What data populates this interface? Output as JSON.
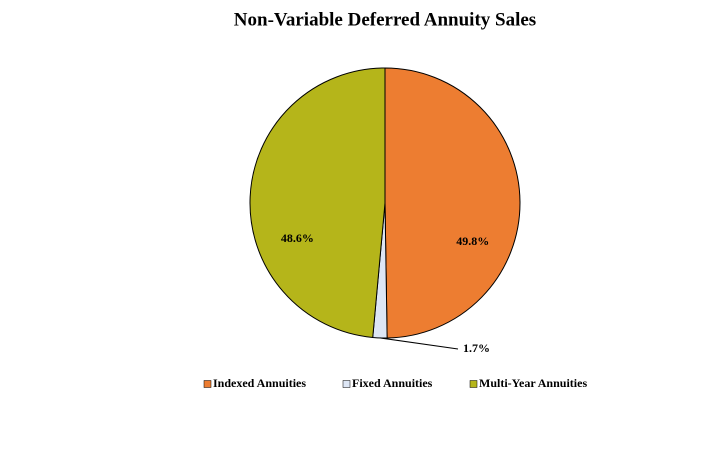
{
  "chart_data": {
    "type": "pie",
    "title": "Non-Variable Deferred Annuity Sales",
    "categories": [
      "Indexed Annuities",
      "Fixed Annuities",
      "Multi-Year Annuities"
    ],
    "values": [
      49.8,
      1.7,
      48.6
    ],
    "value_labels": [
      "49.8%",
      "1.7%",
      "48.6%"
    ],
    "colors": [
      "#ed7d31",
      "#dde6f5",
      "#b5b51a"
    ],
    "legend": "bottom"
  }
}
